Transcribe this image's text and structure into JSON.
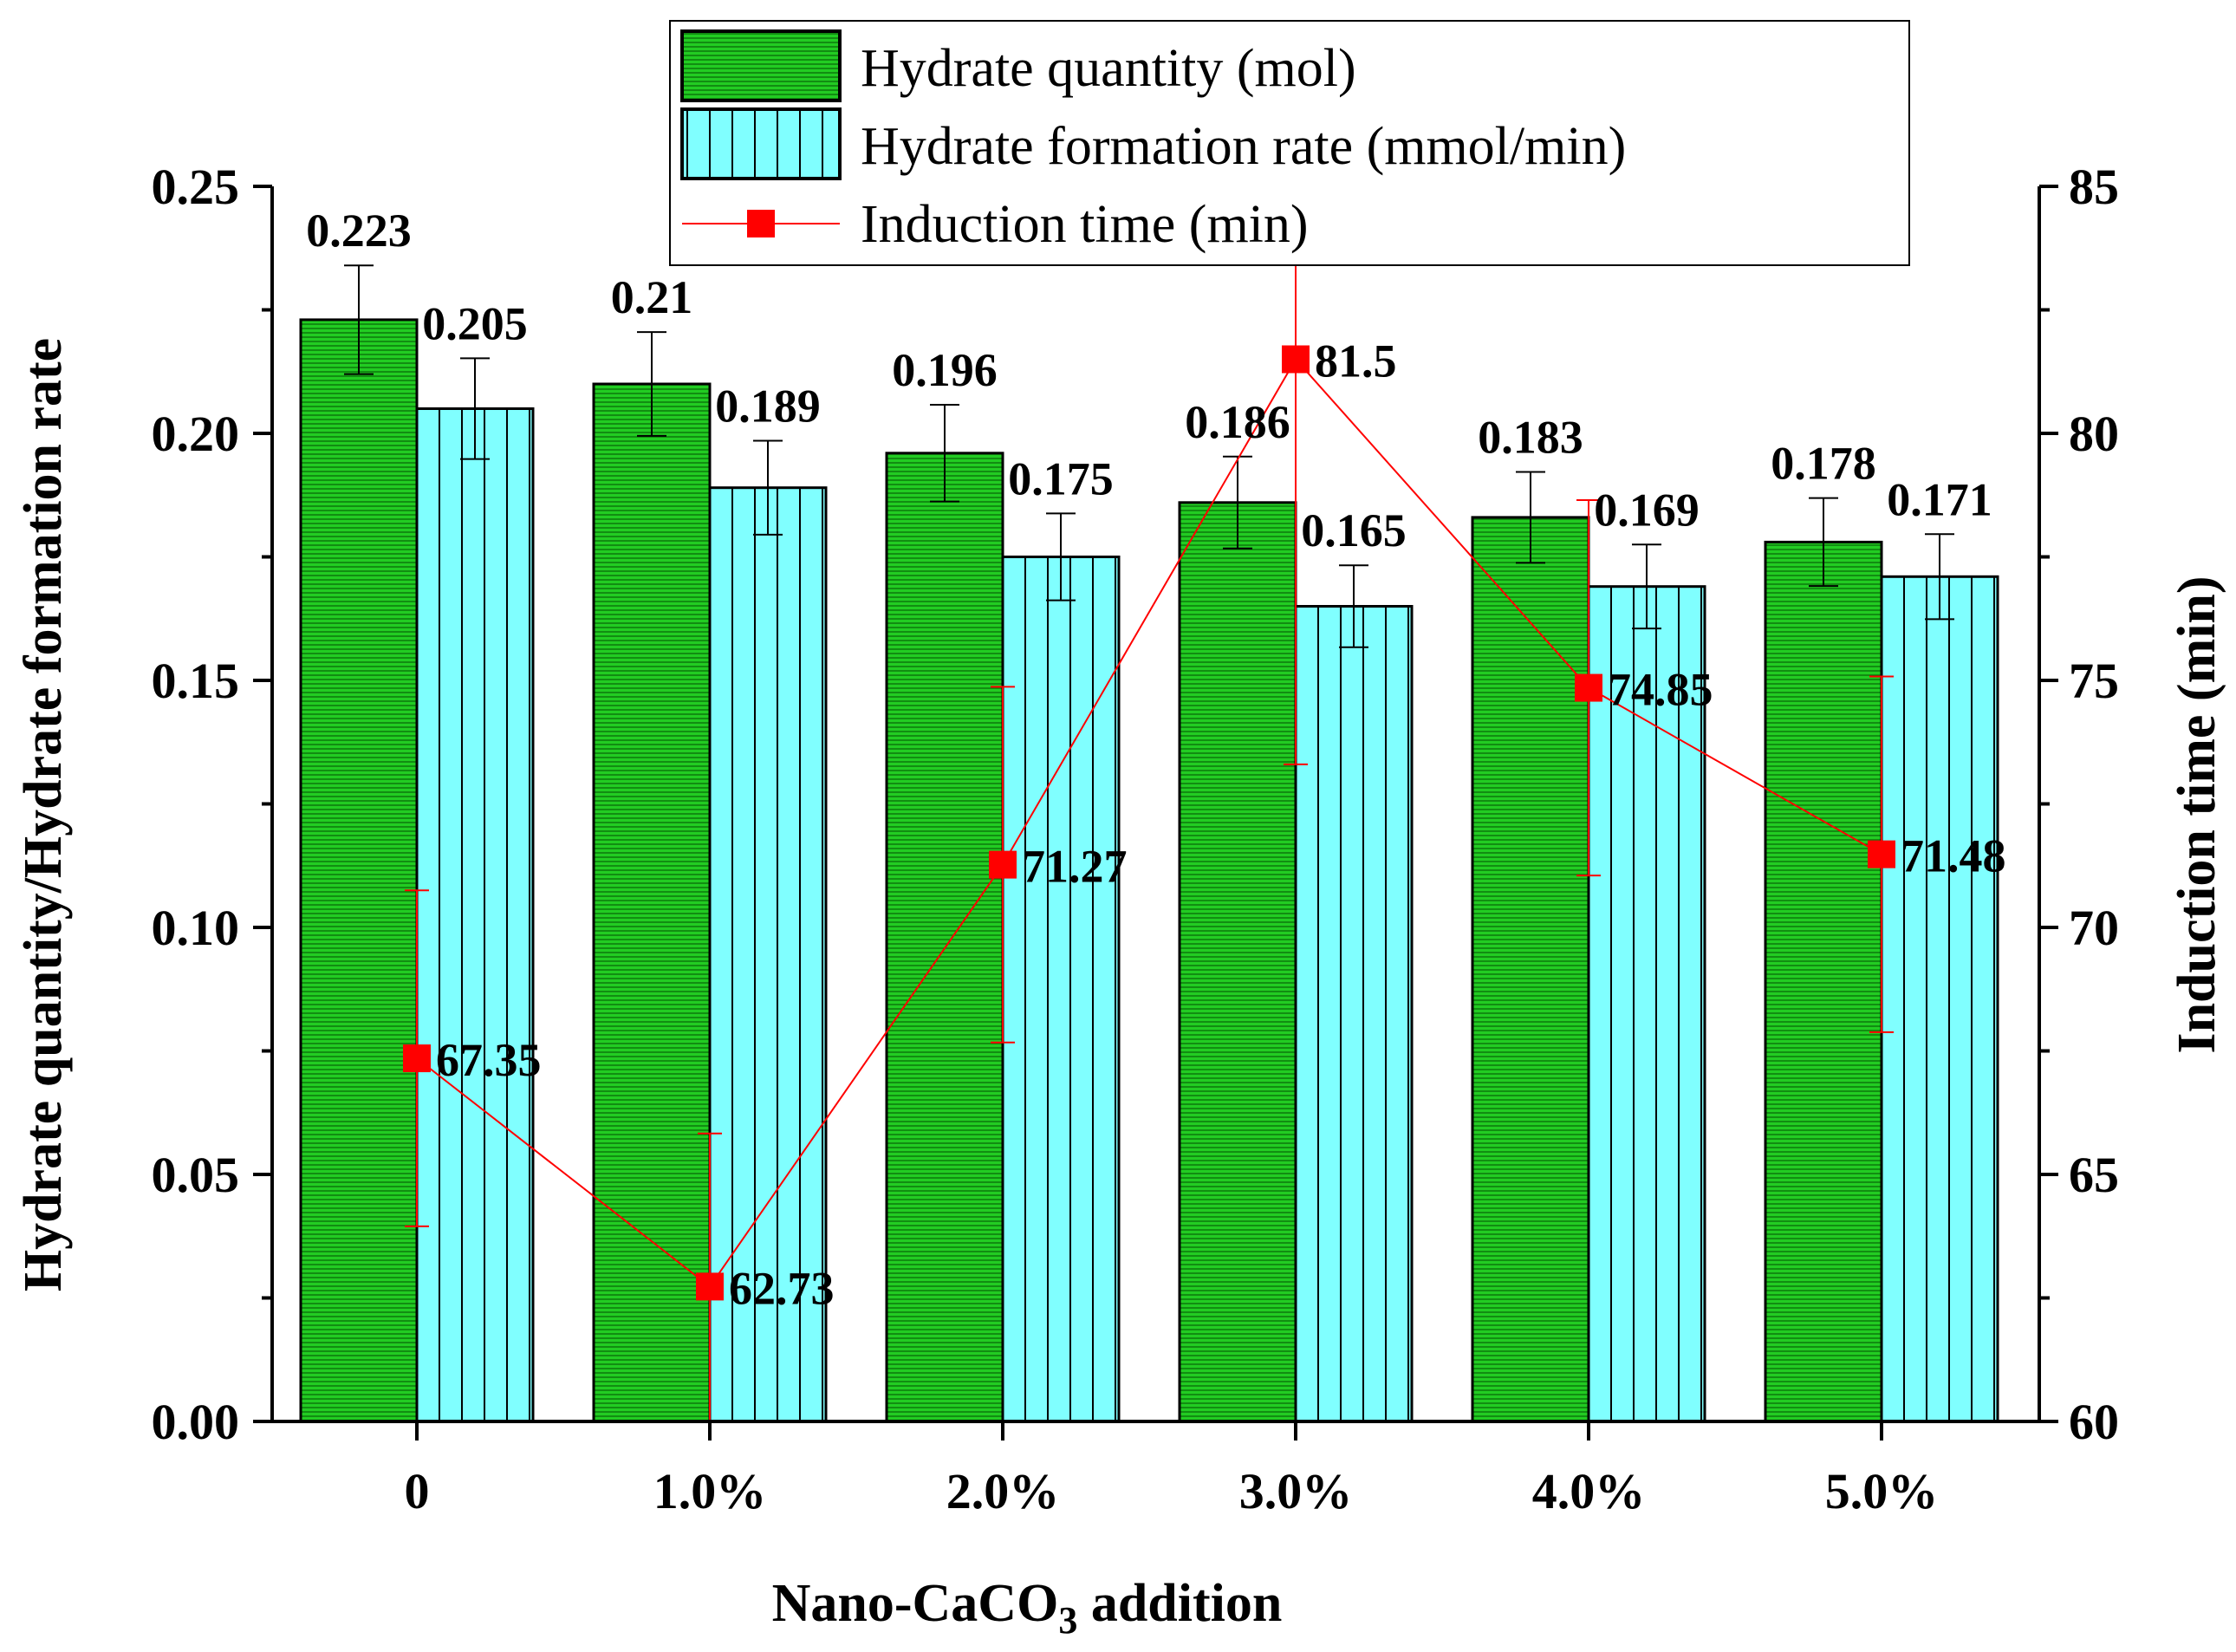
{
  "chart_data": {
    "type": "bar",
    "categories": [
      "0",
      "1.0%",
      "2.0%",
      "3.0%",
      "4.0%",
      "5.0%"
    ],
    "series": [
      {
        "name": "Hydrate quantity (mol)",
        "kind": "bar",
        "axis": "left",
        "color": "#22cc22",
        "values": [
          0.223,
          0.21,
          0.196,
          0.186,
          0.183,
          0.178
        ],
        "labels": [
          "0.223",
          "0.21",
          "0.196",
          "0.186",
          "0.183",
          "0.178"
        ],
        "errors": [
          0.011,
          0.0105,
          0.0098,
          0.0093,
          0.0092,
          0.0089
        ]
      },
      {
        "name": "Hydrate formation rate (mmol/min)",
        "kind": "bar",
        "axis": "left",
        "color": "#80ffff",
        "values": [
          0.205,
          0.189,
          0.175,
          0.165,
          0.169,
          0.171
        ],
        "labels": [
          "0.205",
          "0.189",
          "0.175",
          "0.165",
          "0.169",
          "0.171"
        ],
        "errors": [
          0.0102,
          0.0095,
          0.0088,
          0.0083,
          0.0085,
          0.0086
        ]
      },
      {
        "name": "Induction time (min)",
        "kind": "line",
        "axis": "right",
        "color": "#ff0000",
        "values": [
          67.35,
          62.73,
          71.27,
          81.5,
          74.85,
          71.48
        ],
        "labels": [
          "67.35",
          "62.73",
          "71.27",
          "81.5",
          "74.85",
          "71.48"
        ],
        "errors": [
          3.4,
          3.1,
          3.6,
          8.2,
          3.8,
          3.6
        ]
      }
    ],
    "xlabel_main": "Nano-CaCO",
    "xlabel_sub": "3",
    "xlabel_tail": " addition",
    "ylabel": "Hydrate quantity/Hydrate formation rate",
    "y2label": "Induction time (min)",
    "ylim": [
      0,
      0.25
    ],
    "y2lim": [
      60,
      85
    ],
    "yticks": [
      "0.00",
      "0.05",
      "0.10",
      "0.15",
      "0.20",
      "0.25"
    ],
    "y2ticks": [
      "60",
      "65",
      "70",
      "75",
      "80",
      "85"
    ],
    "legend_position": "top-center",
    "grid": false
  }
}
